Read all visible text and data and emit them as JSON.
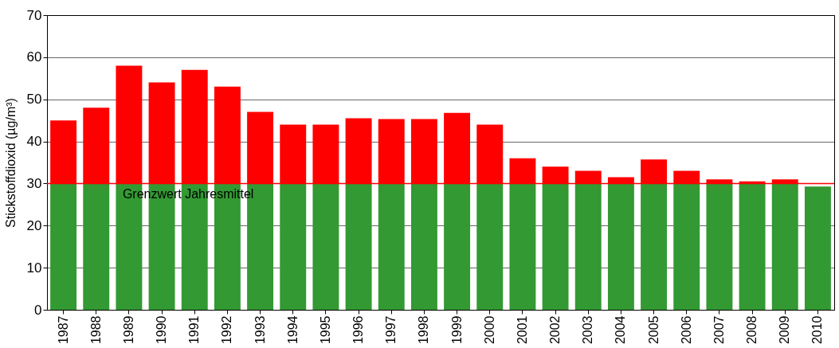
{
  "chart_data": {
    "type": "bar",
    "stacked": true,
    "ylabel": "Stickstoffdioxid (µg/m³)",
    "categories": [
      "1987",
      "1988",
      "1989",
      "1990",
      "1991",
      "1992",
      "1993",
      "1994",
      "1995",
      "1996",
      "1997",
      "1998",
      "1999",
      "2000",
      "2001",
      "2002",
      "2003",
      "2004",
      "2005",
      "2006",
      "2007",
      "2008",
      "2009",
      "2010"
    ],
    "series": [
      {
        "color": "#339933",
        "values": [
          30,
          30,
          30,
          30,
          30,
          30,
          30,
          30,
          30,
          30,
          30,
          30,
          30,
          30,
          30,
          30,
          30,
          30,
          30,
          30,
          30,
          30,
          30,
          29.3
        ]
      },
      {
        "color": "#ff0000",
        "values": [
          15,
          18,
          28,
          24,
          27,
          23,
          17,
          14,
          14,
          15.5,
          15.3,
          15.3,
          16.8,
          14,
          6,
          4,
          3,
          1.5,
          5.7,
          3,
          1,
          0.5,
          1,
          null
        ]
      }
    ],
    "ylim": [
      0,
      70
    ],
    "yticks": [
      0,
      10,
      20,
      30,
      40,
      50,
      60,
      70
    ],
    "grid": "y",
    "ref_lines": [
      {
        "axis": "y",
        "value": 30,
        "label": "Grenzwert Jahresmittel",
        "color": "#ff0000"
      }
    ]
  }
}
